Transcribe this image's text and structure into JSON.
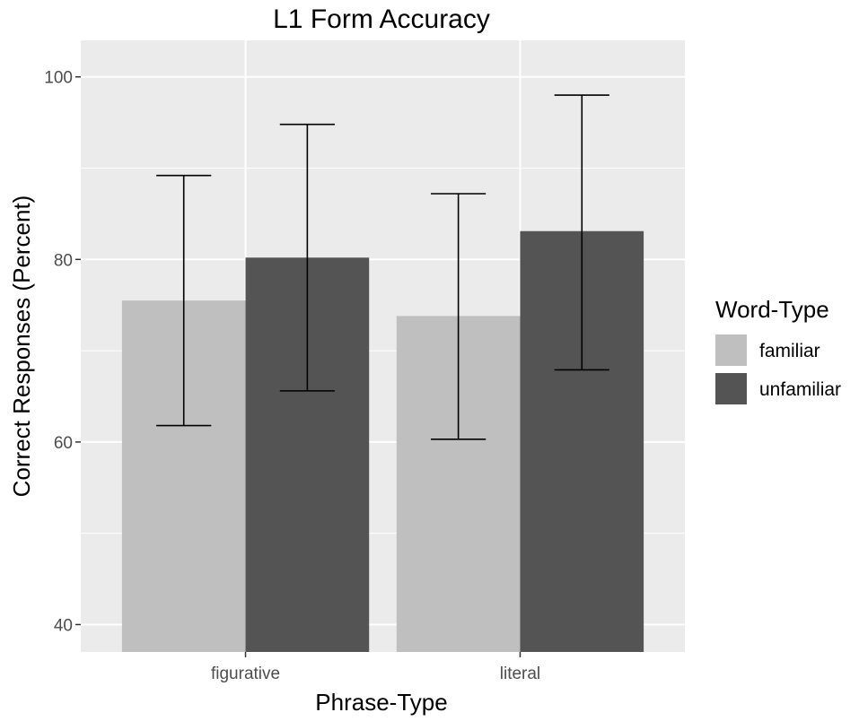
{
  "chart_data": {
    "type": "bar",
    "title": "L1 Form Accuracy",
    "xlabel": "Phrase-Type",
    "ylabel": "Correct Responses (Percent)",
    "categories": [
      "figurative",
      "literal"
    ],
    "ylim": [
      37,
      104
    ],
    "yticks": [
      40,
      60,
      80,
      100
    ],
    "grid": true,
    "legend": {
      "title": "Word-Type",
      "position": "right"
    },
    "series": [
      {
        "name": "familiar",
        "color": "#bfbfbf",
        "values": [
          75.5,
          73.8
        ],
        "error_low": [
          61.8,
          60.3
        ],
        "error_high": [
          89.2,
          87.2
        ]
      },
      {
        "name": "unfamiliar",
        "color": "#545454",
        "values": [
          80.2,
          83.1
        ],
        "error_low": [
          65.6,
          67.9
        ],
        "error_high": [
          94.8,
          98.0
        ]
      }
    ]
  }
}
